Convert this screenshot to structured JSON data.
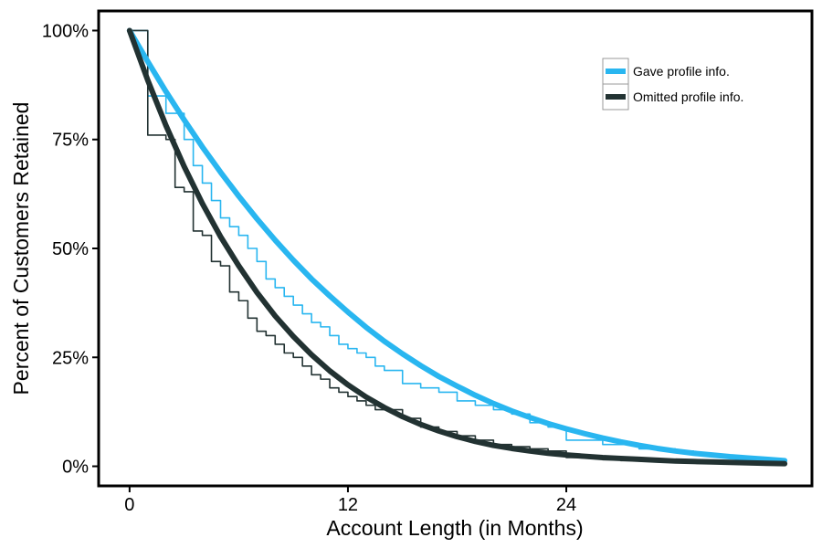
{
  "chart_data": {
    "type": "line",
    "title": "",
    "xlabel": "Account Length (in Months)",
    "ylabel": "Percent of Customers Retained",
    "xlim": [
      -1.7,
      37.5
    ],
    "ylim": [
      -4.5,
      104.5
    ],
    "x_ticks": [
      {
        "value": 0,
        "label": "0"
      },
      {
        "value": 12,
        "label": "12"
      },
      {
        "value": 24,
        "label": "24"
      }
    ],
    "y_ticks": [
      {
        "value": 0,
        "label": "0%"
      },
      {
        "value": 25,
        "label": "25%"
      },
      {
        "value": 50,
        "label": "50%"
      },
      {
        "value": 75,
        "label": "75%"
      },
      {
        "value": 100,
        "label": "100%"
      }
    ],
    "grid": false,
    "legend_position": "top-right",
    "colors": {
      "gave": "#29b6f0",
      "omitted": "#223232"
    },
    "series": [
      {
        "name": "Gave profile info.",
        "style": "smooth",
        "color": "#29b6f0",
        "x": [
          0,
          1,
          2,
          3,
          4,
          5,
          6,
          7,
          8,
          9,
          10,
          11,
          12,
          13,
          14,
          15,
          16,
          17,
          18,
          19,
          20,
          21,
          22,
          23,
          24,
          25,
          26,
          27,
          28,
          29,
          30,
          31,
          32,
          33,
          34,
          35,
          36
        ],
        "values": [
          100,
          92.9,
          86,
          79.5,
          73.3,
          67.5,
          62,
          56.8,
          51.9,
          47.3,
          43,
          39.1,
          35.4,
          31.9,
          28.7,
          25.8,
          23.1,
          20.6,
          18.4,
          16.3,
          14.4,
          12.7,
          11.2,
          9.8,
          8.6,
          7.5,
          6.5,
          5.6,
          4.8,
          4.1,
          3.5,
          3,
          2.6,
          2.2,
          1.9,
          1.6,
          1.3
        ]
      },
      {
        "name": "Omitted profile info.",
        "style": "smooth",
        "color": "#223232",
        "x": [
          0,
          1,
          2,
          3,
          4,
          5,
          6,
          7,
          8,
          9,
          10,
          11,
          12,
          13,
          14,
          15,
          16,
          17,
          18,
          19,
          20,
          21,
          22,
          23,
          24,
          25,
          26,
          27,
          28,
          29,
          30,
          31,
          32,
          33,
          34,
          35,
          36
        ],
        "values": [
          100,
          88.6,
          78.2,
          68.8,
          60.3,
          52.7,
          46,
          39.9,
          34.5,
          29.8,
          25.6,
          21.9,
          18.7,
          15.9,
          13.5,
          11.4,
          9.6,
          8.1,
          6.8,
          5.7,
          4.8,
          4.1,
          3.5,
          3,
          2.6,
          2.3,
          2,
          1.8,
          1.6,
          1.4,
          1.2,
          1.1,
          1,
          0.9,
          0.8,
          0.7,
          0.6
        ]
      },
      {
        "name": "",
        "style": "step",
        "color": "#29b6f0",
        "x": [
          0,
          1,
          1.5,
          2,
          2.5,
          3,
          3.5,
          4,
          4.5,
          5,
          5.5,
          6,
          6.5,
          7,
          7.5,
          8,
          8.5,
          9,
          9.5,
          10,
          10.5,
          11,
          11.5,
          12,
          12.5,
          13,
          13.5,
          14,
          15,
          16,
          17,
          18,
          19,
          20,
          21,
          22,
          23,
          24,
          25,
          26,
          27,
          28,
          29,
          30,
          31,
          32,
          33,
          34,
          35,
          36
        ],
        "values": [
          100,
          85,
          85,
          81,
          81,
          75,
          69,
          65,
          61,
          57,
          55,
          53,
          50,
          47,
          43,
          41,
          39,
          37,
          35,
          33,
          32,
          30,
          28,
          27,
          26,
          25,
          23,
          22,
          19,
          18,
          17,
          15,
          14,
          13,
          12,
          10,
          9,
          6,
          6,
          5,
          5,
          4,
          4,
          3.5,
          3,
          2.5,
          2,
          1.8,
          1.5,
          1.2
        ]
      },
      {
        "name": "",
        "style": "step",
        "color": "#223232",
        "x": [
          0,
          1,
          1.5,
          2,
          2.5,
          3,
          3.5,
          4,
          4.5,
          5,
          5.5,
          6,
          6.5,
          7,
          7.5,
          8,
          8.5,
          9,
          9.5,
          10,
          10.5,
          11,
          11.5,
          12,
          12.5,
          13,
          13.5,
          14,
          15,
          16,
          17,
          18,
          19,
          20,
          21,
          22,
          23,
          24,
          25,
          26,
          27,
          28,
          29,
          30,
          31,
          32,
          33,
          34,
          35,
          36
        ],
        "values": [
          100,
          76,
          76,
          75,
          64,
          63,
          54,
          53,
          47,
          46,
          40,
          38,
          34,
          31,
          30,
          28,
          26,
          25,
          23,
          21,
          20,
          18,
          17,
          16,
          15,
          14,
          13,
          13,
          11,
          9,
          8,
          7,
          6,
          5,
          4.5,
          4,
          3.5,
          2,
          2,
          1.5,
          1.3,
          1.2,
          1.1,
          1,
          0.9,
          0.8,
          0.7,
          0.6,
          0.5,
          0.4
        ]
      }
    ]
  }
}
